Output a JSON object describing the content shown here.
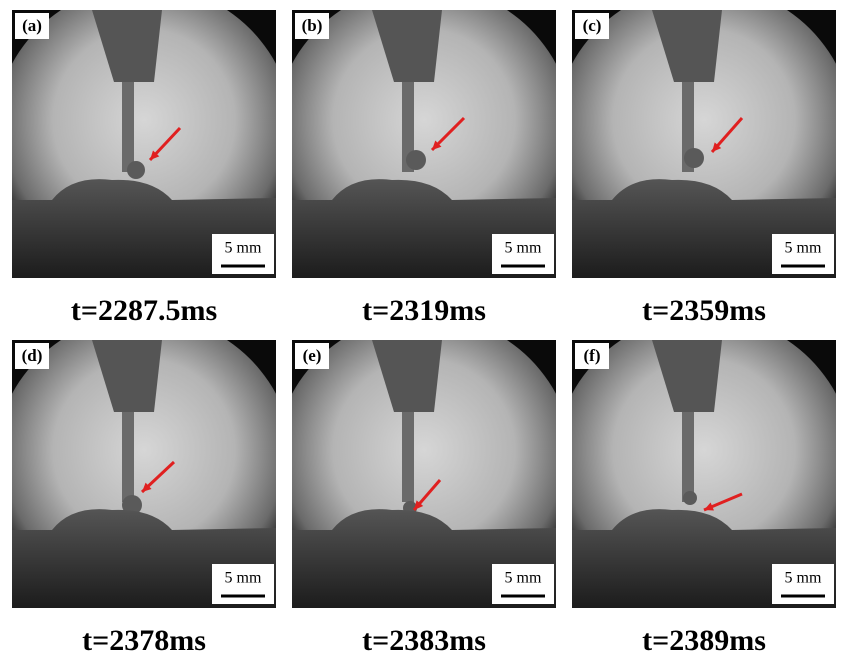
{
  "panels": [
    {
      "label": "(a)",
      "caption": "t=2287.5ms",
      "scale": "5 mm"
    },
    {
      "label": "(b)",
      "caption": "t=2319ms",
      "scale": "5 mm"
    },
    {
      "label": "(c)",
      "caption": "t=2359ms",
      "scale": "5 mm"
    },
    {
      "label": "(d)",
      "caption": "t=2378ms",
      "scale": "5 mm"
    },
    {
      "label": "(e)",
      "caption": "t=2383ms",
      "scale": "5 mm"
    },
    {
      "label": "(f)",
      "caption": "t=2389ms",
      "scale": "5 mm"
    }
  ]
}
